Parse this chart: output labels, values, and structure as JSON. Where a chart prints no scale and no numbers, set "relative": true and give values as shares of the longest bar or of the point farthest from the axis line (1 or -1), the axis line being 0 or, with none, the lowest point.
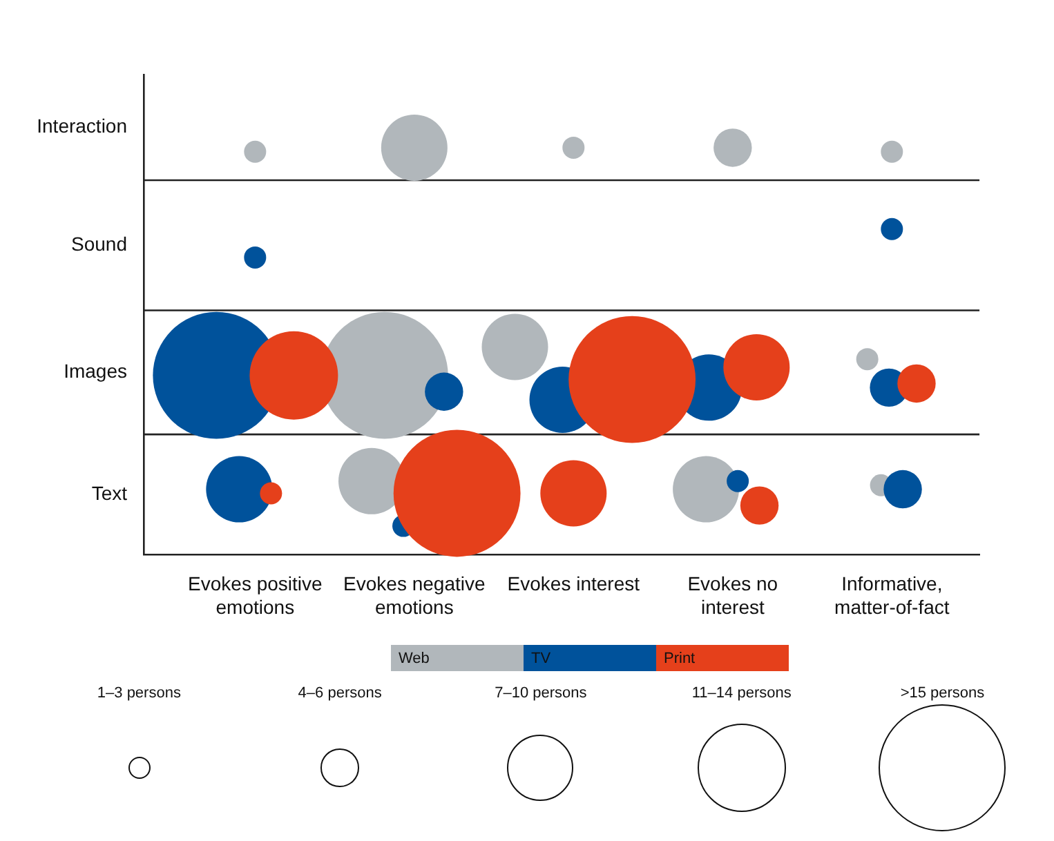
{
  "chart_data": {
    "type": "bubble",
    "relative": true,
    "categories": [
      "Evokes positive emotions",
      "Evokes negative emotions",
      "Evokes interest",
      "Evokes no interest",
      "Informative, matter-of-fact"
    ],
    "series": [
      {
        "name": "Web",
        "color": "#b1b7bb",
        "x": [
          "Evokes positive emotions",
          "Evokes negative emotions",
          "Evokes interest",
          "Evokes no interest",
          "Informative, matter-of-fact",
          "Evokes negative emotions",
          "Evokes interest",
          "Informative, matter-of-fact",
          "Evokes negative emotions",
          "Evokes no interest",
          "Informative, matter-of-fact"
        ],
        "values": [
          0.99,
          1,
          1,
          1,
          0.99,
          0.44,
          0.51,
          0.48,
          0.18,
          0.16,
          0.17
        ],
        "sizes": [
          1,
          9,
          1,
          3,
          1,
          33,
          9,
          1,
          9,
          9,
          1
        ]
      },
      {
        "name": "TV",
        "color": "#00529b",
        "x": [
          "Evokes positive emotions",
          "Informative, matter-of-fact",
          "Evokes positive emotions",
          "Evokes negative emotions",
          "Evokes interest",
          "Evokes no interest",
          "Informative, matter-of-fact",
          "Evokes positive emotions",
          "Evokes negative emotions",
          "Evokes no interest",
          "Informative, matter-of-fact"
        ],
        "values": [
          0.73,
          0.8,
          0.44,
          0.4,
          0.38,
          0.41,
          0.41,
          0.16,
          0.07,
          0.18,
          0.16
        ],
        "sizes": [
          1,
          1,
          33,
          3,
          9,
          9,
          3,
          9,
          1,
          1,
          3
        ]
      },
      {
        "name": "Print",
        "color": "#e5401b",
        "x": [
          "Evokes positive emotions",
          "Evokes interest",
          "Evokes no interest",
          "Informative, matter-of-fact",
          "Evokes positive emotions",
          "Evokes negative emotions",
          "Evokes interest",
          "Evokes no interest"
        ],
        "values": [
          0.44,
          0.43,
          0.46,
          0.42,
          0.15,
          0.15,
          0.15,
          0.12
        ],
        "sizes": [
          16,
          33,
          9,
          3,
          1,
          33,
          9,
          3
        ]
      }
    ],
    "annotations": [
      "Interaction",
      "Sound",
      "Images",
      "Text"
    ],
    "ref_lines": [
      {
        "axis": "y",
        "value": 0.92,
        "color": "#222222"
      },
      {
        "axis": "y",
        "value": 0.6,
        "color": "#222222"
      },
      {
        "axis": "y",
        "value": 0.295,
        "color": "#222222"
      }
    ],
    "size_legend": [
      {
        "value": 1,
        "label": "1–3 persons"
      },
      {
        "value": 3,
        "label": "4–6 persons"
      },
      {
        "value": 9,
        "label": "7–10 persons"
      },
      {
        "value": 16,
        "label": "11–14 persons"
      },
      {
        "value": 33,
        "label": ">15 persons"
      }
    ],
    "legend": "bottom"
  }
}
